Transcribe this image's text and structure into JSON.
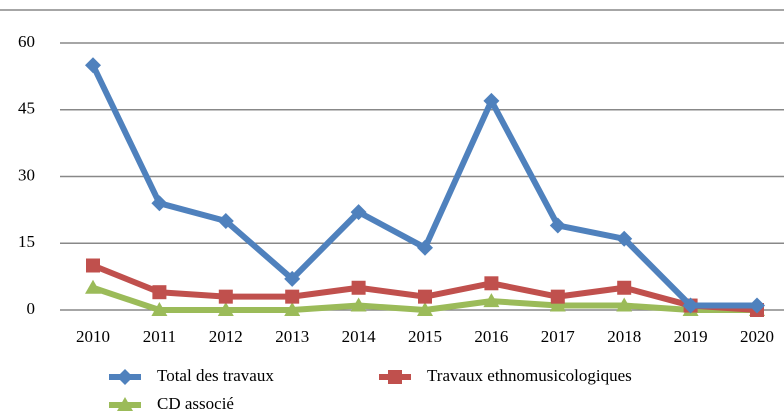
{
  "chart_data": {
    "type": "line",
    "categories": [
      "2010",
      "2011",
      "2012",
      "2013",
      "2014",
      "2015",
      "2016",
      "2017",
      "2018",
      "2019",
      "2020"
    ],
    "series": [
      {
        "name": "Total des travaux",
        "color": "#4f81bd",
        "marker": "diamond",
        "values": [
          55,
          24,
          20,
          7,
          22,
          14,
          47,
          19,
          16,
          1,
          1
        ]
      },
      {
        "name": "Travaux ethnomusicologiques",
        "color": "#c0504d",
        "marker": "square",
        "values": [
          10,
          4,
          3,
          3,
          5,
          3,
          6,
          3,
          5,
          1,
          0
        ]
      },
      {
        "name": "CD associé",
        "color": "#9bbb59",
        "marker": "triangle",
        "values": [
          5,
          0,
          0,
          0,
          1,
          0,
          2,
          1,
          1,
          0,
          0
        ]
      }
    ],
    "ylim": [
      0,
      60
    ],
    "yticks": [
      0,
      15,
      30,
      45,
      60
    ],
    "grid": true,
    "legend": "bottom"
  }
}
